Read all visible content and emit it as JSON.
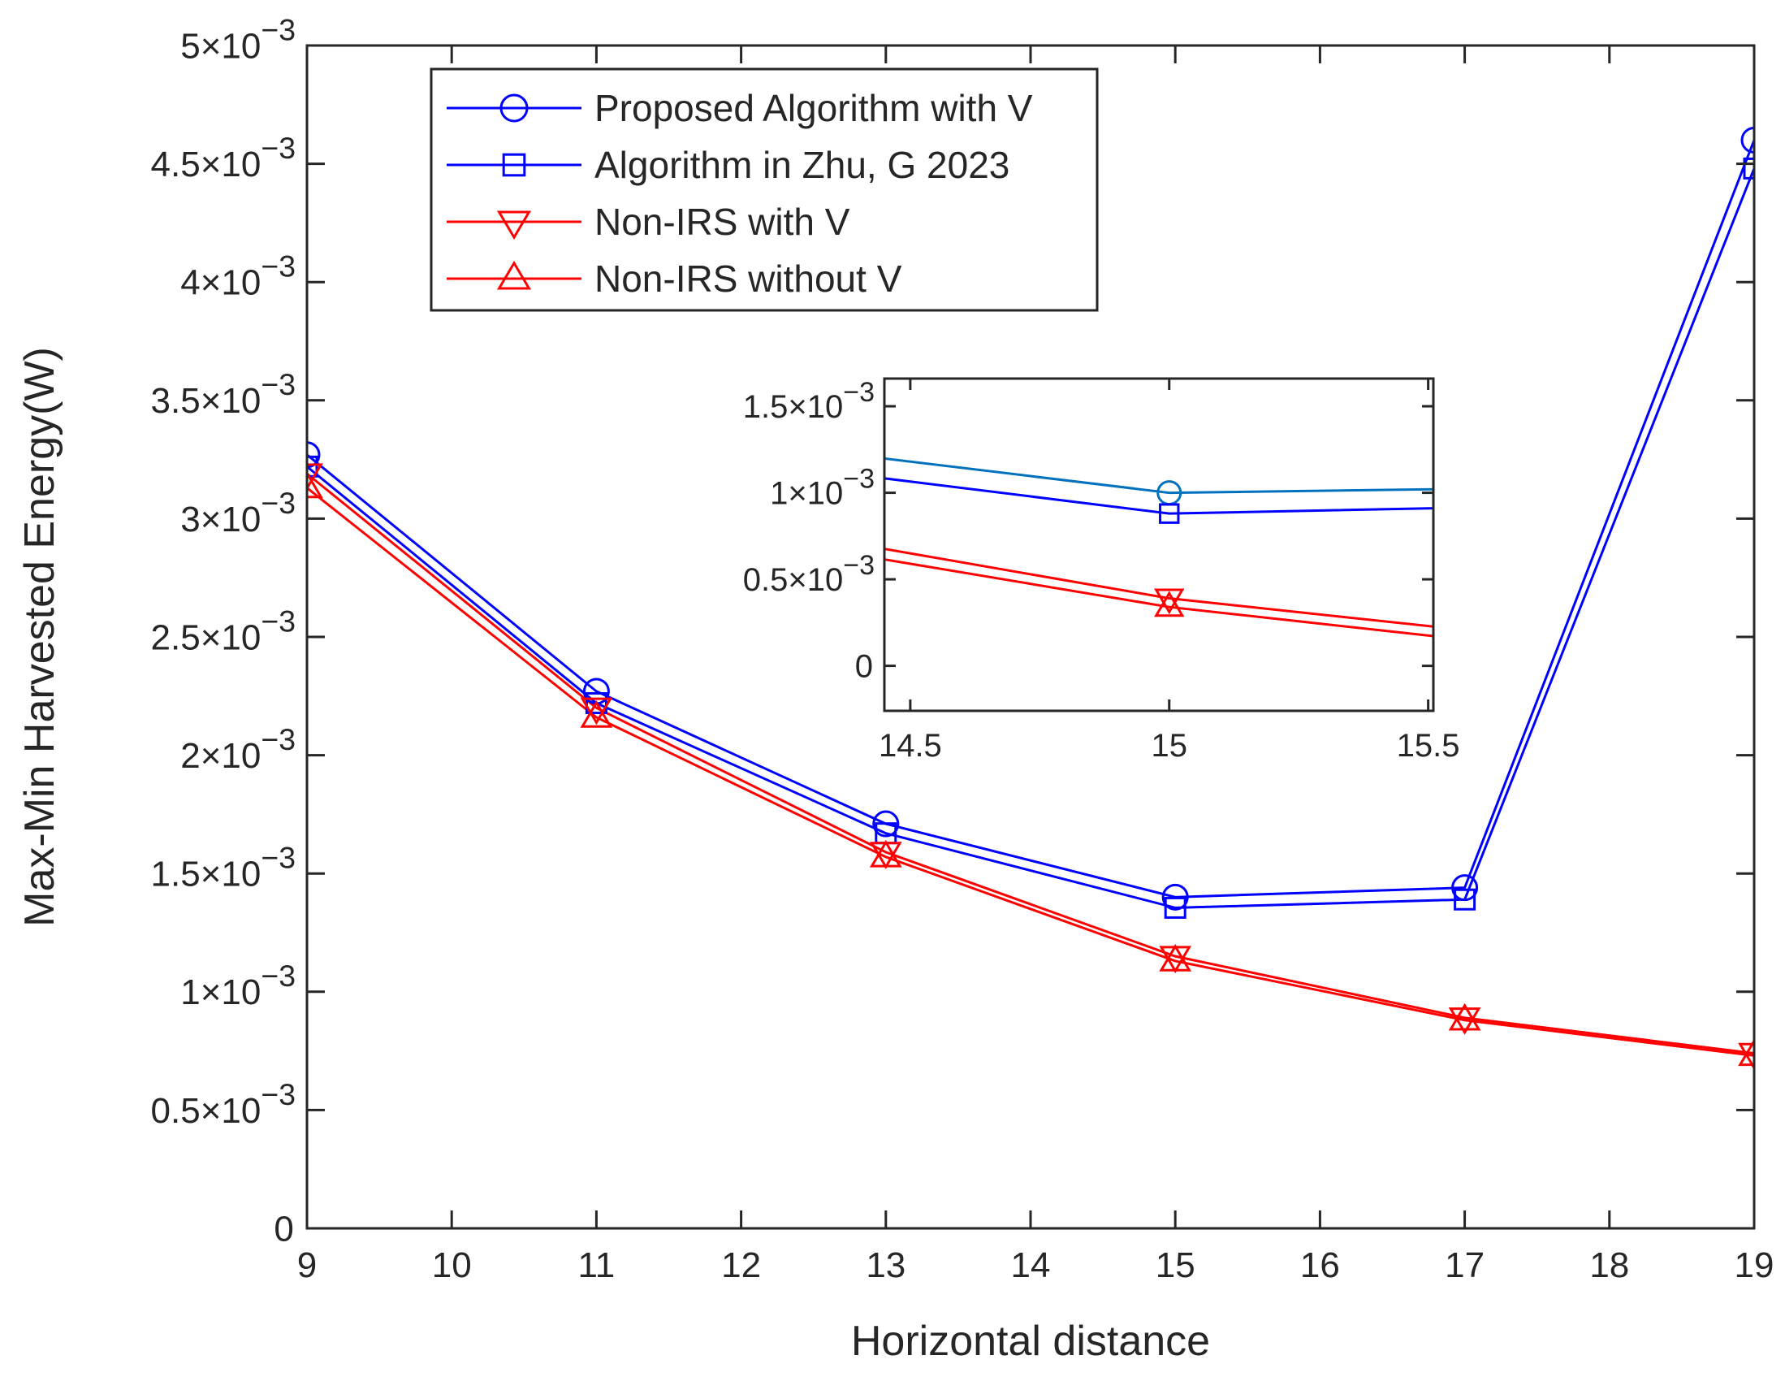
{
  "chart_data": [
    {
      "type": "line",
      "xlabel": "Horizontal distance",
      "ylabel": "Max-Min Harvested Energy(W)",
      "xlim": [
        9,
        19
      ],
      "ylim": [
        0,
        0.005
      ],
      "xticks": [
        9,
        10,
        11,
        12,
        13,
        14,
        15,
        16,
        17,
        18,
        19
      ],
      "yticks": [
        {
          "value": 0,
          "mantissa": "0",
          "exponent": ""
        },
        {
          "value": 0.0005,
          "mantissa": "0.5",
          "exponent": "-3"
        },
        {
          "value": 0.001,
          "mantissa": "1",
          "exponent": "-3"
        },
        {
          "value": 0.0015,
          "mantissa": "1.5",
          "exponent": "-3"
        },
        {
          "value": 0.002,
          "mantissa": "2",
          "exponent": "-3"
        },
        {
          "value": 0.0025,
          "mantissa": "2.5",
          "exponent": "-3"
        },
        {
          "value": 0.003,
          "mantissa": "3",
          "exponent": "-3"
        },
        {
          "value": 0.0035,
          "mantissa": "3.5",
          "exponent": "-3"
        },
        {
          "value": 0.004,
          "mantissa": "4",
          "exponent": "-3"
        },
        {
          "value": 0.0045,
          "mantissa": "4.5",
          "exponent": "-3"
        },
        {
          "value": 0.005,
          "mantissa": "5",
          "exponent": "-3"
        }
      ],
      "times_sign": "×10",
      "grid": false,
      "legend_position": "top-left",
      "x": [
        9,
        11,
        13,
        15,
        17,
        19
      ],
      "series": [
        {
          "name": "Proposed Algorithm with V",
          "color": "#0000FF",
          "marker": "circle",
          "values": [
            0.00327,
            0.00227,
            0.00171,
            0.0014,
            0.00144,
            0.0046
          ]
        },
        {
          "name": "Algorithm in Zhu, G 2023",
          "color": "#0000FF",
          "marker": "square",
          "values": [
            0.00322,
            0.00222,
            0.00167,
            0.001355,
            0.00139,
            0.00448
          ]
        },
        {
          "name": "Non-IRS with V",
          "color": "#FF0000",
          "marker": "triangle-down",
          "values": [
            0.00319,
            0.0022,
            0.00159,
            0.00115,
            0.00089,
            0.00074
          ]
        },
        {
          "name": "Non-IRS without V",
          "color": "#FF0000",
          "marker": "triangle-up",
          "values": [
            0.00313,
            0.00216,
            0.00157,
            0.00113,
            0.00088,
            0.00073
          ]
        }
      ]
    },
    {
      "type": "line",
      "role": "inset",
      "xlim": [
        14.45,
        15.51
      ],
      "ylim": [
        -0.00026,
        0.00166
      ],
      "xticks": [
        {
          "value": 14.5,
          "label": "14.5"
        },
        {
          "value": 15,
          "label": "15"
        },
        {
          "value": 15.5,
          "label": "15.5"
        }
      ],
      "yticks": [
        {
          "value": 0,
          "mantissa": "0",
          "exponent": ""
        },
        {
          "value": 0.0005,
          "mantissa": "0.5",
          "exponent": "-3"
        },
        {
          "value": 0.001,
          "mantissa": "1",
          "exponent": "-3"
        },
        {
          "value": 0.0015,
          "mantissa": "1.5",
          "exponent": "-3"
        }
      ],
      "x": [
        14,
        15,
        16
      ],
      "series": [
        {
          "color": "#0072BD",
          "marker": "circle",
          "values": [
            0.00136,
            0.001,
            0.00104
          ]
        },
        {
          "color": "#0000FF",
          "marker": "square",
          "values": [
            0.00125,
            0.00088,
            0.00094
          ]
        },
        {
          "color": "#FF0000",
          "marker": "triangle-down",
          "values": [
            0.00091,
            0.00039,
            7e-05
          ]
        },
        {
          "color": "#FF0000",
          "marker": "triangle-up",
          "values": [
            0.00084,
            0.00034,
            1e-05
          ]
        }
      ]
    }
  ]
}
